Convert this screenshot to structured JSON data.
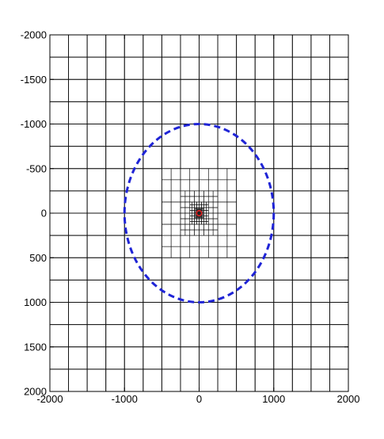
{
  "chart_data": {
    "type": "scatter",
    "title": "",
    "xlabel": "",
    "ylabel": "",
    "xlim": [
      -2000,
      2000
    ],
    "ylim": [
      -2000,
      2000
    ],
    "y_axis_inverted": true,
    "x_ticks": [
      "-2000",
      "-1000",
      "0",
      "1000",
      "2000"
    ],
    "y_ticks": [
      "-2000",
      "-1500",
      "-1000",
      "-500",
      "0",
      "500",
      "1000",
      "1500",
      "2000"
    ],
    "grid_description": "adaptive mesh refined toward the origin",
    "grid_coarse_spacing": 250,
    "circle": {
      "center": [
        0,
        0
      ],
      "radius": 1000,
      "style": "dashed",
      "color": "#1f24d6"
    },
    "center_marker": {
      "x": 0,
      "y": 0,
      "color": "#e02020"
    }
  }
}
